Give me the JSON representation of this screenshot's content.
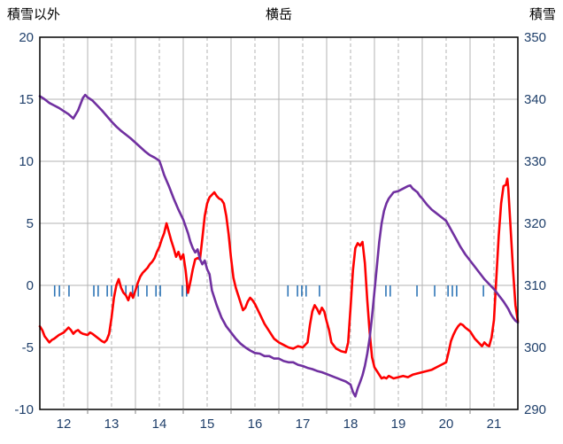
{
  "header": {
    "left_label": "積雪以外",
    "title": "横岳",
    "right_label": "積雪"
  },
  "colors": {
    "temperature_line": "#FF0000",
    "snow_depth_line": "#7030A0",
    "precip_tick": "#2E75B6",
    "gridline": "#b3b3b3",
    "axis_border": "#000000",
    "tick_label": "#20406b",
    "background": "#ffffff"
  },
  "chart_data": {
    "type": "line",
    "title": "横岳",
    "left_axis": {
      "label": "積雪以外",
      "min": -10,
      "max": 20,
      "ticks": [
        20,
        15,
        10,
        5,
        0,
        -5,
        -10
      ]
    },
    "right_axis": {
      "label": "積雪",
      "min": 290,
      "max": 350,
      "ticks": [
        350,
        340,
        330,
        320,
        310,
        300,
        290
      ]
    },
    "x_axis": {
      "min": 11.5,
      "max": 21.5,
      "tick_labels": [
        "12",
        "13",
        "14",
        "15",
        "16",
        "17",
        "18",
        "19",
        "20",
        "21"
      ],
      "tick_positions": [
        12,
        13,
        14,
        15,
        16,
        17,
        18,
        19,
        20,
        21
      ],
      "dashed_gridlines": [
        12,
        13,
        14,
        15,
        16,
        17,
        18,
        19,
        20,
        21
      ],
      "solid_gridlines": [
        12.5,
        13.5,
        14.5,
        15.5,
        16.5,
        17.5,
        18.5,
        19.5,
        20.5
      ]
    },
    "grid": true,
    "legend": "none",
    "series": [
      {
        "name": "temperature",
        "axis": "left",
        "color": "#FF0000",
        "width": 2.6,
        "points": [
          [
            11.5,
            -3.3
          ],
          [
            11.55,
            -3.6
          ],
          [
            11.6,
            -4.1
          ],
          [
            11.7,
            -4.6
          ],
          [
            11.75,
            -4.4
          ],
          [
            11.8,
            -4.3
          ],
          [
            11.9,
            -4.0
          ],
          [
            11.95,
            -3.9
          ],
          [
            12.0,
            -3.8
          ],
          [
            12.05,
            -3.6
          ],
          [
            12.1,
            -3.4
          ],
          [
            12.15,
            -3.6
          ],
          [
            12.2,
            -3.9
          ],
          [
            12.25,
            -3.7
          ],
          [
            12.3,
            -3.6
          ],
          [
            12.35,
            -3.8
          ],
          [
            12.4,
            -3.9
          ],
          [
            12.5,
            -4.0
          ],
          [
            12.55,
            -3.8
          ],
          [
            12.6,
            -3.9
          ],
          [
            12.7,
            -4.2
          ],
          [
            12.8,
            -4.5
          ],
          [
            12.85,
            -4.6
          ],
          [
            12.9,
            -4.4
          ],
          [
            12.95,
            -3.9
          ],
          [
            13.0,
            -2.6
          ],
          [
            13.05,
            -1.0
          ],
          [
            13.1,
            0.0
          ],
          [
            13.15,
            0.5
          ],
          [
            13.2,
            -0.2
          ],
          [
            13.25,
            -0.6
          ],
          [
            13.3,
            -0.8
          ],
          [
            13.35,
            -1.2
          ],
          [
            13.4,
            -0.6
          ],
          [
            13.45,
            -1.0
          ],
          [
            13.5,
            -0.4
          ],
          [
            13.55,
            0.2
          ],
          [
            13.6,
            0.7
          ],
          [
            13.65,
            1.0
          ],
          [
            13.7,
            1.2
          ],
          [
            13.75,
            1.4
          ],
          [
            13.8,
            1.7
          ],
          [
            13.85,
            1.9
          ],
          [
            13.9,
            2.2
          ],
          [
            13.95,
            2.7
          ],
          [
            14.0,
            3.1
          ],
          [
            14.05,
            3.7
          ],
          [
            14.1,
            4.2
          ],
          [
            14.15,
            5.0
          ],
          [
            14.2,
            4.3
          ],
          [
            14.25,
            3.6
          ],
          [
            14.3,
            3.0
          ],
          [
            14.35,
            2.3
          ],
          [
            14.4,
            2.7
          ],
          [
            14.45,
            2.1
          ],
          [
            14.5,
            2.5
          ],
          [
            14.55,
            1.2
          ],
          [
            14.6,
            -0.6
          ],
          [
            14.65,
            0.3
          ],
          [
            14.7,
            1.3
          ],
          [
            14.75,
            2.1
          ],
          [
            14.8,
            2.2
          ],
          [
            14.85,
            2.1
          ],
          [
            14.9,
            3.8
          ],
          [
            14.95,
            5.6
          ],
          [
            15.0,
            6.6
          ],
          [
            15.05,
            7.1
          ],
          [
            15.1,
            7.3
          ],
          [
            15.15,
            7.5
          ],
          [
            15.2,
            7.2
          ],
          [
            15.25,
            7.0
          ],
          [
            15.3,
            6.9
          ],
          [
            15.35,
            6.6
          ],
          [
            15.4,
            5.6
          ],
          [
            15.45,
            4.1
          ],
          [
            15.5,
            2.2
          ],
          [
            15.55,
            0.6
          ],
          [
            15.6,
            -0.2
          ],
          [
            15.65,
            -0.8
          ],
          [
            15.7,
            -1.4
          ],
          [
            15.75,
            -2.0
          ],
          [
            15.8,
            -1.8
          ],
          [
            15.85,
            -1.3
          ],
          [
            15.9,
            -1.0
          ],
          [
            15.95,
            -1.2
          ],
          [
            16.0,
            -1.5
          ],
          [
            16.1,
            -2.3
          ],
          [
            16.2,
            -3.1
          ],
          [
            16.3,
            -3.7
          ],
          [
            16.4,
            -4.3
          ],
          [
            16.5,
            -4.6
          ],
          [
            16.6,
            -4.8
          ],
          [
            16.7,
            -5.0
          ],
          [
            16.8,
            -5.1
          ],
          [
            16.9,
            -4.9
          ],
          [
            17.0,
            -5.0
          ],
          [
            17.1,
            -4.6
          ],
          [
            17.15,
            -3.2
          ],
          [
            17.2,
            -2.1
          ],
          [
            17.25,
            -1.6
          ],
          [
            17.3,
            -1.9
          ],
          [
            17.35,
            -2.3
          ],
          [
            17.4,
            -1.8
          ],
          [
            17.45,
            -2.1
          ],
          [
            17.5,
            -2.9
          ],
          [
            17.55,
            -3.6
          ],
          [
            17.6,
            -4.6
          ],
          [
            17.7,
            -5.1
          ],
          [
            17.8,
            -5.3
          ],
          [
            17.9,
            -5.4
          ],
          [
            17.95,
            -4.6
          ],
          [
            18.0,
            -1.8
          ],
          [
            18.05,
            1.2
          ],
          [
            18.1,
            3.0
          ],
          [
            18.15,
            3.4
          ],
          [
            18.2,
            3.2
          ],
          [
            18.25,
            3.5
          ],
          [
            18.3,
            1.8
          ],
          [
            18.35,
            -1.2
          ],
          [
            18.4,
            -3.8
          ],
          [
            18.45,
            -5.8
          ],
          [
            18.5,
            -6.6
          ],
          [
            18.55,
            -6.9
          ],
          [
            18.6,
            -7.2
          ],
          [
            18.65,
            -7.5
          ],
          [
            18.7,
            -7.4
          ],
          [
            18.75,
            -7.5
          ],
          [
            18.8,
            -7.3
          ],
          [
            18.9,
            -7.5
          ],
          [
            19.0,
            -7.4
          ],
          [
            19.1,
            -7.3
          ],
          [
            19.2,
            -7.4
          ],
          [
            19.3,
            -7.2
          ],
          [
            19.4,
            -7.1
          ],
          [
            19.5,
            -7.0
          ],
          [
            19.6,
            -6.9
          ],
          [
            19.7,
            -6.8
          ],
          [
            19.8,
            -6.6
          ],
          [
            19.9,
            -6.4
          ],
          [
            20.0,
            -6.2
          ],
          [
            20.05,
            -5.4
          ],
          [
            20.1,
            -4.5
          ],
          [
            20.15,
            -4.0
          ],
          [
            20.2,
            -3.6
          ],
          [
            20.25,
            -3.3
          ],
          [
            20.3,
            -3.1
          ],
          [
            20.35,
            -3.2
          ],
          [
            20.4,
            -3.4
          ],
          [
            20.5,
            -3.7
          ],
          [
            20.6,
            -4.3
          ],
          [
            20.7,
            -4.7
          ],
          [
            20.75,
            -4.9
          ],
          [
            20.8,
            -4.6
          ],
          [
            20.85,
            -4.8
          ],
          [
            20.9,
            -4.9
          ],
          [
            20.95,
            -4.2
          ],
          [
            21.0,
            -2.8
          ],
          [
            21.05,
            0.6
          ],
          [
            21.1,
            4.0
          ],
          [
            21.15,
            6.6
          ],
          [
            21.2,
            8.0
          ],
          [
            21.25,
            8.1
          ],
          [
            21.28,
            8.6
          ],
          [
            21.3,
            7.8
          ],
          [
            21.35,
            4.5
          ],
          [
            21.4,
            1.2
          ],
          [
            21.45,
            -1.6
          ],
          [
            21.5,
            -2.9
          ]
        ]
      },
      {
        "name": "snow_depth",
        "axis": "right",
        "color": "#7030A0",
        "width": 2.6,
        "points": [
          [
            11.5,
            340.5
          ],
          [
            11.6,
            340.0
          ],
          [
            11.7,
            339.4
          ],
          [
            11.8,
            339.0
          ],
          [
            11.9,
            338.6
          ],
          [
            12.0,
            338.1
          ],
          [
            12.1,
            337.6
          ],
          [
            12.2,
            336.9
          ],
          [
            12.3,
            338.2
          ],
          [
            12.4,
            340.2
          ],
          [
            12.45,
            340.7
          ],
          [
            12.5,
            340.3
          ],
          [
            12.6,
            339.8
          ],
          [
            12.7,
            339.0
          ],
          [
            12.8,
            338.2
          ],
          [
            12.9,
            337.3
          ],
          [
            13.0,
            336.4
          ],
          [
            13.1,
            335.6
          ],
          [
            13.2,
            334.9
          ],
          [
            13.3,
            334.3
          ],
          [
            13.4,
            333.7
          ],
          [
            13.5,
            333.0
          ],
          [
            13.6,
            332.3
          ],
          [
            13.7,
            331.6
          ],
          [
            13.8,
            331.0
          ],
          [
            13.9,
            330.6
          ],
          [
            14.0,
            330.1
          ],
          [
            14.05,
            329.0
          ],
          [
            14.1,
            327.8
          ],
          [
            14.15,
            326.9
          ],
          [
            14.2,
            326.0
          ],
          [
            14.3,
            324.0
          ],
          [
            14.4,
            322.2
          ],
          [
            14.5,
            320.6
          ],
          [
            14.55,
            319.5
          ],
          [
            14.6,
            318.4
          ],
          [
            14.65,
            317.0
          ],
          [
            14.7,
            316.0
          ],
          [
            14.75,
            315.3
          ],
          [
            14.8,
            315.8
          ],
          [
            14.85,
            314.2
          ],
          [
            14.9,
            313.4
          ],
          [
            14.95,
            314.0
          ],
          [
            15.0,
            312.6
          ],
          [
            15.05,
            311.8
          ],
          [
            15.1,
            309.2
          ],
          [
            15.15,
            308.0
          ],
          [
            15.2,
            306.8
          ],
          [
            15.3,
            304.8
          ],
          [
            15.4,
            303.4
          ],
          [
            15.5,
            302.4
          ],
          [
            15.6,
            301.4
          ],
          [
            15.7,
            300.6
          ],
          [
            15.8,
            300.0
          ],
          [
            15.9,
            299.5
          ],
          [
            16.0,
            299.1
          ],
          [
            16.1,
            299.0
          ],
          [
            16.2,
            298.6
          ],
          [
            16.3,
            298.6
          ],
          [
            16.4,
            298.2
          ],
          [
            16.5,
            298.2
          ],
          [
            16.6,
            297.8
          ],
          [
            16.7,
            297.6
          ],
          [
            16.8,
            297.6
          ],
          [
            16.9,
            297.2
          ],
          [
            17.0,
            297.0
          ],
          [
            17.1,
            296.7
          ],
          [
            17.2,
            296.5
          ],
          [
            17.3,
            296.2
          ],
          [
            17.4,
            296.0
          ],
          [
            17.5,
            295.7
          ],
          [
            17.6,
            295.4
          ],
          [
            17.7,
            295.1
          ],
          [
            17.8,
            294.8
          ],
          [
            17.9,
            294.5
          ],
          [
            18.0,
            294.0
          ],
          [
            18.05,
            292.8
          ],
          [
            18.1,
            292.1
          ],
          [
            18.15,
            293.4
          ],
          [
            18.2,
            294.4
          ],
          [
            18.25,
            295.5
          ],
          [
            18.3,
            297.0
          ],
          [
            18.35,
            299.0
          ],
          [
            18.4,
            301.5
          ],
          [
            18.45,
            305.0
          ],
          [
            18.5,
            309.0
          ],
          [
            18.55,
            313.0
          ],
          [
            18.6,
            317.0
          ],
          [
            18.65,
            320.0
          ],
          [
            18.7,
            322.0
          ],
          [
            18.75,
            323.2
          ],
          [
            18.8,
            324.0
          ],
          [
            18.9,
            325.0
          ],
          [
            19.0,
            325.2
          ],
          [
            19.1,
            325.6
          ],
          [
            19.2,
            326.0
          ],
          [
            19.25,
            326.1
          ],
          [
            19.3,
            325.6
          ],
          [
            19.4,
            325.0
          ],
          [
            19.45,
            324.4
          ],
          [
            19.5,
            324.0
          ],
          [
            19.6,
            323.0
          ],
          [
            19.7,
            322.2
          ],
          [
            19.8,
            321.6
          ],
          [
            19.9,
            321.0
          ],
          [
            20.0,
            320.4
          ],
          [
            20.1,
            319.0
          ],
          [
            20.2,
            317.6
          ],
          [
            20.3,
            316.2
          ],
          [
            20.4,
            315.0
          ],
          [
            20.5,
            314.0
          ],
          [
            20.6,
            313.0
          ],
          [
            20.7,
            312.0
          ],
          [
            20.8,
            311.0
          ],
          [
            20.9,
            310.2
          ],
          [
            21.0,
            309.4
          ],
          [
            21.1,
            308.4
          ],
          [
            21.2,
            307.4
          ],
          [
            21.3,
            306.2
          ],
          [
            21.35,
            305.4
          ],
          [
            21.4,
            304.8
          ],
          [
            21.45,
            304.3
          ],
          [
            21.5,
            304.0
          ]
        ]
      }
    ],
    "precip_ticks": {
      "color": "#2E75B6",
      "y_top": 0,
      "y_bottom": -0.9,
      "x": [
        11.81,
        11.91,
        12.11,
        12.63,
        12.72,
        12.91,
        13.0,
        13.3,
        13.44,
        13.56,
        13.74,
        13.93,
        14.02,
        14.48,
        14.57,
        16.69,
        16.89,
        16.98,
        17.07,
        17.35,
        18.74,
        18.83,
        19.39,
        19.76,
        20.04,
        20.13,
        20.22,
        20.78
      ]
    }
  }
}
